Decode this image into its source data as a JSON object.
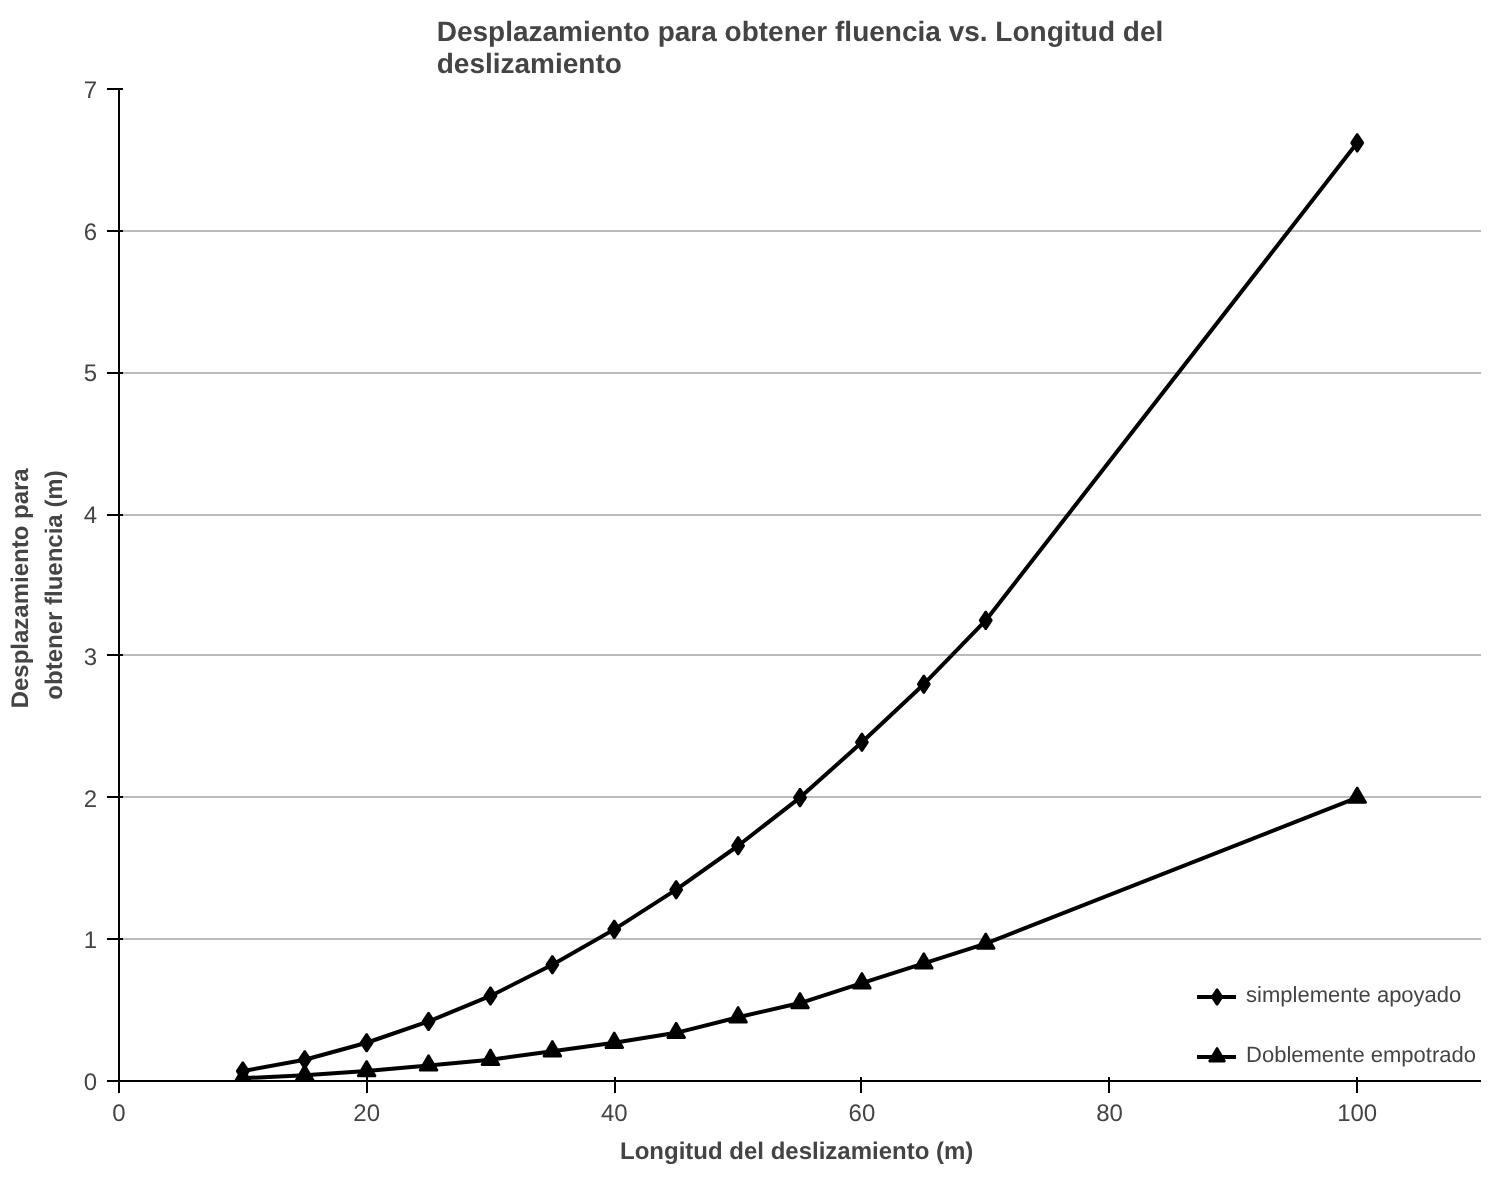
{
  "chart_data": {
    "type": "line",
    "title": "Desplazamiento para obtener fluencia vs. Longitud del deslizamiento",
    "xlabel": "Longitud  del deslizamiento (m)",
    "ylabel": "Desplazamiento  para obtener fluencia (m)",
    "x": [
      10,
      15,
      20,
      25,
      30,
      35,
      40,
      45,
      50,
      55,
      60,
      65,
      70,
      100
    ],
    "series": [
      {
        "name": "simplemente apoyado",
        "color": "#000000",
        "marker": "diamond",
        "values": [
          0.07,
          0.15,
          0.27,
          0.42,
          0.6,
          0.82,
          1.07,
          1.35,
          1.66,
          2.0,
          2.39,
          2.8,
          3.25,
          6.62
        ]
      },
      {
        "name": "Doblemente empotrado",
        "color": "#000000",
        "marker": "triangle",
        "values": [
          0.02,
          0.04,
          0.07,
          0.11,
          0.15,
          0.21,
          0.27,
          0.34,
          0.45,
          0.55,
          0.69,
          0.83,
          0.97,
          2.0
        ]
      }
    ],
    "xlim": [
      0,
      110
    ],
    "xticks": [
      0,
      20,
      40,
      60,
      80,
      100
    ],
    "ylim": [
      0,
      7
    ],
    "yticks": [
      0,
      1,
      2,
      3,
      4,
      5,
      6,
      7
    ],
    "grid": "y",
    "legend": "bottom right",
    "line_style": "solid"
  }
}
